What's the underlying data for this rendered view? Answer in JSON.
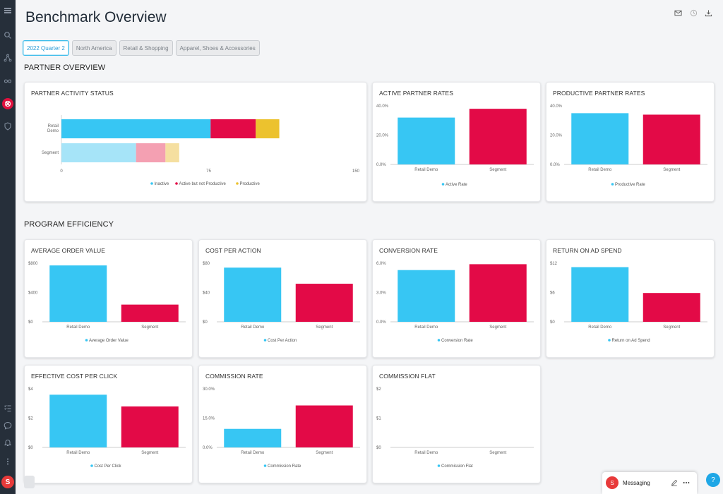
{
  "page": {
    "title": "Benchmark Overview"
  },
  "sidebar": {
    "icons": [
      "menu-icon",
      "search-icon",
      "network-icon",
      "infinity-icon",
      "app-logo-icon",
      "shield-icon",
      "checklist-icon",
      "chat-icon",
      "bell-icon",
      "more-dots-icon"
    ],
    "avatar_initial": "S"
  },
  "header": {
    "icons": [
      "mail-icon",
      "history-icon",
      "download-icon"
    ]
  },
  "filters": [
    "2022 Quarter 2",
    "North America",
    "Retail & Shopping",
    "Apparel, Shoes & Accessories"
  ],
  "sections": {
    "partner_overview": "PARTNER OVERVIEW",
    "program_efficiency": "PROGRAM EFFICIENCY"
  },
  "colors": {
    "blue": "#37c6f3",
    "red": "#e30a47",
    "yellow": "#ecc22e",
    "light_blue": "#a6e4f8",
    "pink": "#f4a0b2",
    "light_yellow": "#f5dfa0",
    "accent": "#1fa7e6"
  },
  "messaging": {
    "label": "Messaging",
    "initial": "S",
    "help": "?"
  },
  "chart_data": [
    {
      "id": "partner-activity-status",
      "type": "bar",
      "orientation": "horizontal",
      "stacked": true,
      "title": "PARTNER ACTIVITY STATUS",
      "categories": [
        "Retail Demo",
        "Segment"
      ],
      "series": [
        {
          "name": "Inactive",
          "values": [
            76,
            38
          ]
        },
        {
          "name": "Active but not Productive",
          "values": [
            23,
            15
          ]
        },
        {
          "name": "Productive",
          "values": [
            12,
            7
          ]
        }
      ],
      "xlim": [
        0,
        150
      ],
      "xticks": [
        "0",
        "75",
        "150"
      ]
    },
    {
      "id": "active-partner-rates",
      "type": "bar",
      "title": "ACTIVE PARTNER RATES",
      "categories": [
        "Retail Demo",
        "Segment"
      ],
      "values": [
        32,
        38
      ],
      "ylim": [
        0,
        40
      ],
      "yticks": [
        "0.0%",
        "20.0%",
        "40.0%"
      ],
      "legend": "Active Rate"
    },
    {
      "id": "productive-partner-rates",
      "type": "bar",
      "title": "PRODUCTIVE PARTNER RATES",
      "categories": [
        "Retail Demo",
        "Segment"
      ],
      "values": [
        35,
        34
      ],
      "ylim": [
        0,
        40
      ],
      "yticks": [
        "0.0%",
        "20.0%",
        "40.0%"
      ],
      "legend": "Productive Rate"
    },
    {
      "id": "average-order-value",
      "type": "bar",
      "title": "AVERAGE ORDER VALUE",
      "categories": [
        "Retail Demo",
        "Segment"
      ],
      "values": [
        770,
        235
      ],
      "ylim": [
        0,
        800
      ],
      "yticks": [
        "$0",
        "$400",
        "$800"
      ],
      "legend": "Average Order Value"
    },
    {
      "id": "cost-per-action",
      "type": "bar",
      "title": "COST PER ACTION",
      "categories": [
        "Retail Demo",
        "Segment"
      ],
      "values": [
        74,
        52
      ],
      "ylim": [
        0,
        80
      ],
      "yticks": [
        "$0",
        "$40",
        "$80"
      ],
      "legend": "Cost Per Action"
    },
    {
      "id": "conversion-rate",
      "type": "bar",
      "title": "CONVERSION RATE",
      "categories": [
        "Retail Demo",
        "Segment"
      ],
      "values": [
        5.3,
        5.9
      ],
      "ylim": [
        0,
        6
      ],
      "yticks": [
        "0.0%",
        "3.0%",
        "6.0%"
      ],
      "legend": "Conversion Rate"
    },
    {
      "id": "return-on-ad-spend",
      "type": "bar",
      "title": "RETURN ON AD SPEND",
      "categories": [
        "Retail Demo",
        "Segment"
      ],
      "values": [
        11.2,
        5.9
      ],
      "ylim": [
        0,
        12
      ],
      "yticks": [
        "$0",
        "$6",
        "$12"
      ],
      "legend": "Return on Ad Spend"
    },
    {
      "id": "effective-cost-per-click",
      "type": "bar",
      "title": "EFFECTIVE COST PER CLICK",
      "categories": [
        "Retail Demo",
        "Segment"
      ],
      "values": [
        3.6,
        2.8
      ],
      "ylim": [
        0,
        4
      ],
      "yticks": [
        "$0",
        "$2",
        "$4"
      ],
      "legend": "Cost Per Click"
    },
    {
      "id": "commission-rate",
      "type": "bar",
      "title": "COMMISSION RATE",
      "categories": [
        "Retail Demo",
        "Segment"
      ],
      "values": [
        9.5,
        21.5
      ],
      "ylim": [
        0,
        30
      ],
      "yticks": [
        "0.0%",
        "15.0%",
        "30.0%"
      ],
      "legend": "Commission Rate"
    },
    {
      "id": "commission-flat",
      "type": "bar",
      "title": "COMMISSION FLAT",
      "categories": [
        "Retail Demo",
        "Segment"
      ],
      "values": [
        0,
        0
      ],
      "ylim": [
        0,
        2
      ],
      "yticks": [
        "$0",
        "$1",
        "$2"
      ],
      "legend": "Commission Flat"
    }
  ]
}
